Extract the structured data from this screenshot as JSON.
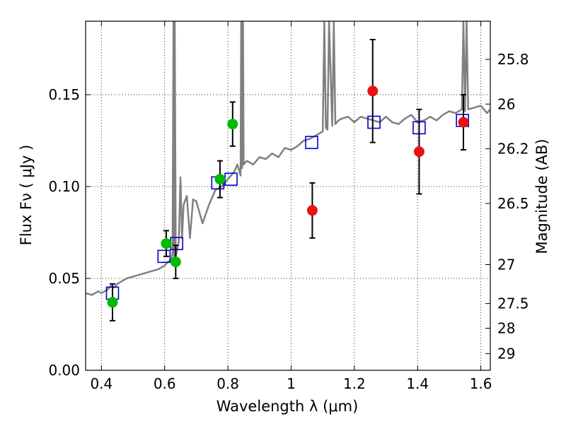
{
  "chart_data": {
    "type": "scatter",
    "title": "",
    "xlabel": "Wavelength  λ (μm)",
    "ylabel": "Flux  Fν  ( μJy )",
    "y2label": "Magnitude (AB)",
    "xlim": [
      0.35,
      1.63
    ],
    "ylim": [
      0.0,
      0.19
    ],
    "grid": true,
    "x_ticks": [
      0.4,
      0.6,
      0.8,
      1.0,
      1.2,
      1.4,
      1.6
    ],
    "x_tick_labels": [
      "0.4",
      "0.6",
      "0.8",
      "1",
      "1.2",
      "1.4",
      "1.6"
    ],
    "y_ticks": [
      0.0,
      0.05,
      0.1,
      0.15
    ],
    "y_tick_labels": [
      "0.00",
      "0.05",
      "0.10",
      "0.15"
    ],
    "y2_ticks": [
      {
        "flux": 0.1692,
        "label": "25.8"
      },
      {
        "flux": 0.1449,
        "label": "26"
      },
      {
        "flux": 0.1206,
        "label": "26.2"
      },
      {
        "flux": 0.0908,
        "label": "26.5"
      },
      {
        "flux": 0.0575,
        "label": "27"
      },
      {
        "flux": 0.0363,
        "label": "27.5"
      },
      {
        "flux": 0.0229,
        "label": "28"
      },
      {
        "flux": 0.0091,
        "label": "29"
      }
    ],
    "colors": {
      "model": "#808080",
      "green": "#00bb00",
      "red": "#ee1111",
      "squares": "#0000cc",
      "errorbar": "#000000"
    },
    "series": [
      {
        "kind": "model-spectrum",
        "x": [
          0.35,
          0.37,
          0.39,
          0.4,
          0.42,
          0.43,
          0.44,
          0.45,
          0.46,
          0.47,
          0.48,
          0.5,
          0.52,
          0.54,
          0.56,
          0.58,
          0.6,
          0.61,
          0.62,
          0.625,
          0.628,
          0.63,
          0.632,
          0.635,
          0.64,
          0.645,
          0.65,
          0.655,
          0.66,
          0.67,
          0.68,
          0.69,
          0.7,
          0.72,
          0.74,
          0.76,
          0.78,
          0.8,
          0.82,
          0.83,
          0.84,
          0.842,
          0.845,
          0.848,
          0.85,
          0.86,
          0.88,
          0.9,
          0.92,
          0.94,
          0.96,
          0.98,
          1.0,
          1.02,
          1.04,
          1.06,
          1.08,
          1.1,
          1.105,
          1.11,
          1.115,
          1.12,
          1.13,
          1.135,
          1.14,
          1.15,
          1.16,
          1.18,
          1.2,
          1.22,
          1.24,
          1.26,
          1.28,
          1.3,
          1.32,
          1.34,
          1.36,
          1.38,
          1.4,
          1.42,
          1.44,
          1.46,
          1.48,
          1.5,
          1.52,
          1.54,
          1.545,
          1.55,
          1.555,
          1.56,
          1.58,
          1.6,
          1.62,
          1.63
        ],
        "y": [
          0.042,
          0.041,
          0.043,
          0.042,
          0.044,
          0.046,
          0.045,
          0.047,
          0.048,
          0.049,
          0.05,
          0.051,
          0.052,
          0.053,
          0.054,
          0.055,
          0.057,
          0.059,
          0.06,
          0.064,
          0.19,
          0.06,
          0.19,
          0.062,
          0.066,
          0.07,
          0.105,
          0.072,
          0.09,
          0.095,
          0.072,
          0.093,
          0.092,
          0.08,
          0.09,
          0.098,
          0.1,
          0.104,
          0.108,
          0.112,
          0.106,
          0.19,
          0.11,
          0.19,
          0.112,
          0.114,
          0.112,
          0.116,
          0.115,
          0.118,
          0.116,
          0.121,
          0.12,
          0.122,
          0.125,
          0.126,
          0.128,
          0.13,
          0.19,
          0.132,
          0.131,
          0.19,
          0.133,
          0.19,
          0.134,
          0.136,
          0.137,
          0.138,
          0.135,
          0.138,
          0.137,
          0.136,
          0.135,
          0.138,
          0.135,
          0.134,
          0.137,
          0.139,
          0.135,
          0.136,
          0.138,
          0.136,
          0.139,
          0.141,
          0.14,
          0.142,
          0.19,
          0.141,
          0.19,
          0.142,
          0.143,
          0.144,
          0.14,
          0.142
        ]
      },
      {
        "kind": "model-photometry",
        "marker": "open-square",
        "x": [
          0.435,
          0.598,
          0.638,
          0.768,
          0.81,
          1.065,
          1.262,
          1.405,
          1.542
        ],
        "y": [
          0.042,
          0.062,
          0.069,
          0.102,
          0.104,
          0.124,
          0.135,
          0.132,
          0.136
        ]
      },
      {
        "kind": "observed",
        "marker": "green-circle",
        "x": [
          0.435,
          0.605,
          0.635,
          0.775,
          0.815
        ],
        "y": [
          0.037,
          0.069,
          0.059,
          0.104,
          0.134
        ],
        "yerr": [
          0.01,
          0.007,
          0.009,
          0.01,
          0.012
        ]
      },
      {
        "kind": "observed",
        "marker": "red-circle",
        "x": [
          1.067,
          1.258,
          1.405,
          1.545
        ],
        "y": [
          0.087,
          0.152,
          0.119,
          0.135
        ],
        "yerr": [
          0.015,
          0.028,
          0.023,
          0.015
        ]
      }
    ]
  }
}
